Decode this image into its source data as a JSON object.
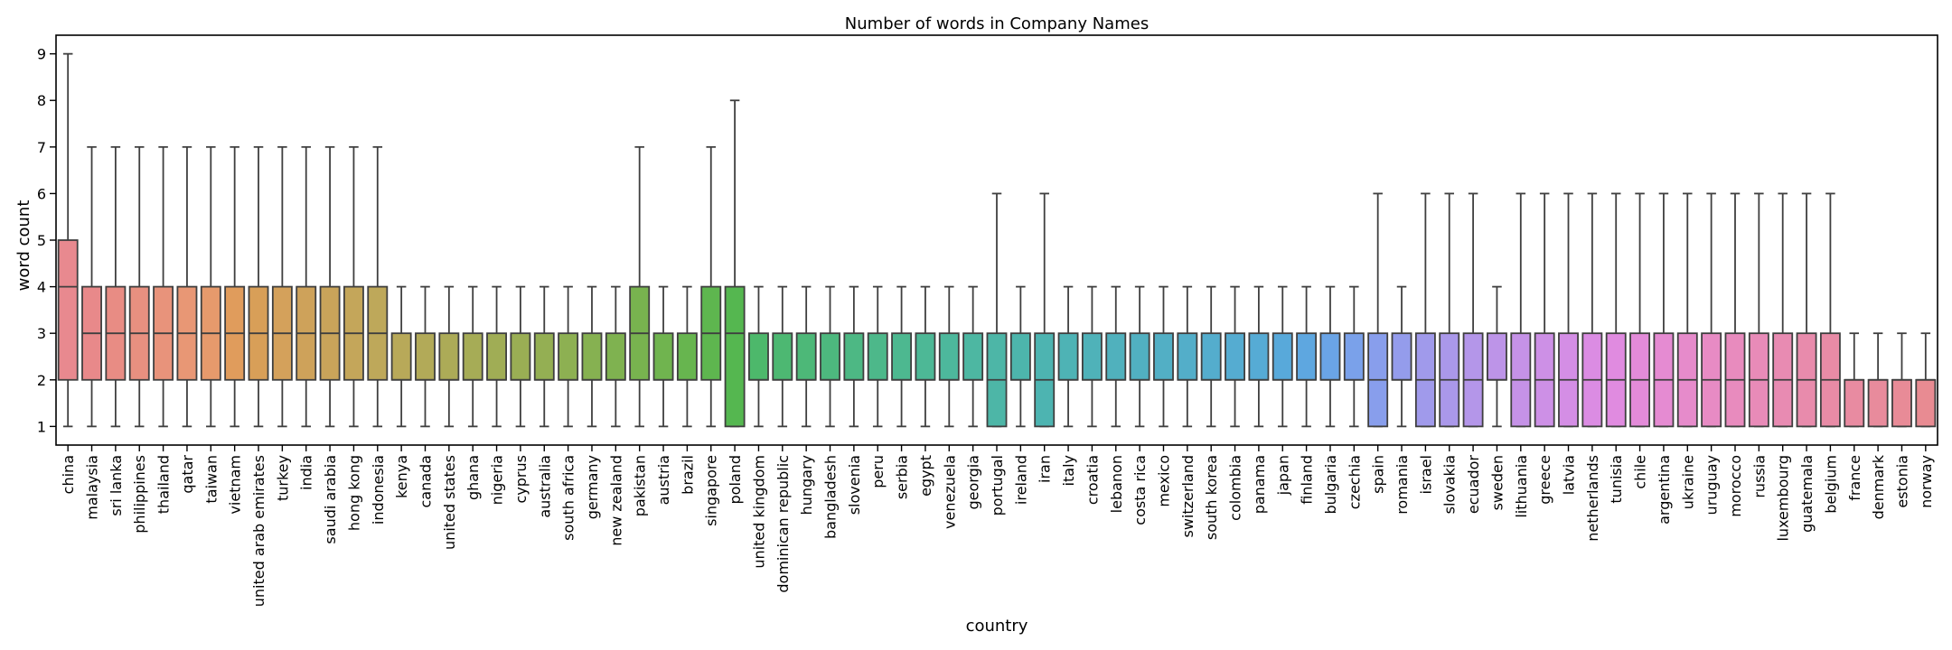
{
  "chart_data": {
    "type": "box",
    "title": "Number of words in Company Names",
    "xlabel": "country",
    "ylabel": "word count",
    "ylim": [
      0.6,
      9.4
    ],
    "yticks": [
      1,
      2,
      3,
      4,
      5,
      6,
      7,
      8,
      9
    ],
    "grid": false,
    "categories": [
      "china",
      "malaysia",
      "sri lanka",
      "philippines",
      "thailand",
      "qatar",
      "taiwan",
      "vietnam",
      "united arab emirates",
      "turkey",
      "india",
      "saudi arabia",
      "hong kong",
      "indonesia",
      "kenya",
      "canada",
      "united states",
      "ghana",
      "nigeria",
      "cyprus",
      "australia",
      "south africa",
      "germany",
      "new zealand",
      "pakistan",
      "austria",
      "brazil",
      "singapore",
      "poland",
      "united kingdom",
      "dominican republic",
      "hungary",
      "bangladesh",
      "slovenia",
      "peru",
      "serbia",
      "egypt",
      "venezuela",
      "georgia",
      "portugal",
      "ireland",
      "iran",
      "italy",
      "croatia",
      "lebanon",
      "costa rica",
      "mexico",
      "switzerland",
      "south korea",
      "colombia",
      "panama",
      "japan",
      "finland",
      "bulgaria",
      "czechia",
      "spain",
      "romania",
      "israel",
      "slovakia",
      "ecuador",
      "sweden",
      "lithuania",
      "greece",
      "latvia",
      "netherlands",
      "tunisia",
      "chile",
      "argentina",
      "ukraine",
      "uruguay",
      "morocco",
      "russia",
      "luxembourg",
      "guatemala",
      "belgium",
      "france",
      "denmark",
      "estonia",
      "norway"
    ],
    "boxes": [
      {
        "whislo": 1,
        "q1": 2,
        "med": 4,
        "q3": 5,
        "whishi": 9,
        "color": "#e8898f"
      },
      {
        "whislo": 1,
        "q1": 2,
        "med": 3,
        "q3": 4,
        "whishi": 7,
        "color": "#e8898a"
      },
      {
        "whislo": 1,
        "q1": 2,
        "med": 3,
        "q3": 4,
        "whishi": 7,
        "color": "#e88c84"
      },
      {
        "whislo": 1,
        "q1": 2,
        "med": 3,
        "q3": 4,
        "whishi": 7,
        "color": "#e89080"
      },
      {
        "whislo": 1,
        "q1": 2,
        "med": 3,
        "q3": 4,
        "whishi": 7,
        "color": "#e8937b"
      },
      {
        "whislo": 1,
        "q1": 2,
        "med": 3,
        "q3": 4,
        "whishi": 7,
        "color": "#e89775"
      },
      {
        "whislo": 1,
        "q1": 2,
        "med": 3,
        "q3": 4,
        "whishi": 7,
        "color": "#e69a6c"
      },
      {
        "whislo": 1,
        "q1": 2,
        "med": 3,
        "q3": 4,
        "whishi": 7,
        "color": "#e09c5c"
      },
      {
        "whislo": 1,
        "q1": 2,
        "med": 3,
        "q3": 4,
        "whishi": 7,
        "color": "#d89f58"
      },
      {
        "whislo": 1,
        "q1": 2,
        "med": 3,
        "q3": 4,
        "whishi": 7,
        "color": "#d4a15b"
      },
      {
        "whislo": 1,
        "q1": 2,
        "med": 3,
        "q3": 4,
        "whishi": 7,
        "color": "#cea25a"
      },
      {
        "whislo": 1,
        "q1": 2,
        "med": 3,
        "q3": 4,
        "whishi": 7,
        "color": "#c9a45a"
      },
      {
        "whislo": 1,
        "q1": 2,
        "med": 3,
        "q3": 4,
        "whishi": 7,
        "color": "#c4a65a"
      },
      {
        "whislo": 1,
        "q1": 2,
        "med": 3,
        "q3": 4,
        "whishi": 7,
        "color": "#bea85a"
      },
      {
        "whislo": 1,
        "q1": 2,
        "med": 2,
        "q3": 3,
        "whishi": 4,
        "color": "#b8a959"
      },
      {
        "whislo": 1,
        "q1": 2,
        "med": 2,
        "q3": 3,
        "whishi": 4,
        "color": "#b2aa58"
      },
      {
        "whislo": 1,
        "q1": 2,
        "med": 2,
        "q3": 3,
        "whishi": 4,
        "color": "#acab57"
      },
      {
        "whislo": 1,
        "q1": 2,
        "med": 2,
        "q3": 3,
        "whishi": 4,
        "color": "#a6ac56"
      },
      {
        "whislo": 1,
        "q1": 2,
        "med": 2,
        "q3": 3,
        "whishi": 4,
        "color": "#a0ad55"
      },
      {
        "whislo": 1,
        "q1": 2,
        "med": 2,
        "q3": 3,
        "whishi": 4,
        "color": "#9aae54"
      },
      {
        "whislo": 1,
        "q1": 2,
        "med": 2,
        "q3": 3,
        "whishi": 4,
        "color": "#94af53"
      },
      {
        "whislo": 1,
        "q1": 2,
        "med": 2,
        "q3": 3,
        "whishi": 4,
        "color": "#8db052"
      },
      {
        "whislo": 1,
        "q1": 2,
        "med": 2,
        "q3": 3,
        "whishi": 4,
        "color": "#86b151"
      },
      {
        "whislo": 1,
        "q1": 2,
        "med": 2,
        "q3": 3,
        "whishi": 4,
        "color": "#7fb250"
      },
      {
        "whislo": 1,
        "q1": 2,
        "med": 3,
        "q3": 4,
        "whishi": 7,
        "color": "#78b34f"
      },
      {
        "whislo": 1,
        "q1": 2,
        "med": 2,
        "q3": 3,
        "whishi": 4,
        "color": "#70b44f"
      },
      {
        "whislo": 1,
        "q1": 2,
        "med": 2,
        "q3": 3,
        "whishi": 4,
        "color": "#67b54f"
      },
      {
        "whislo": 1,
        "q1": 2,
        "med": 3,
        "q3": 4,
        "whishi": 7,
        "color": "#5eb64f"
      },
      {
        "whislo": 1,
        "q1": 1,
        "med": 3,
        "q3": 4,
        "whishi": 8,
        "color": "#55b750"
      },
      {
        "whislo": 1,
        "q1": 2,
        "med": 2,
        "q3": 3,
        "whishi": 4,
        "color": "#4db86b"
      },
      {
        "whislo": 1,
        "q1": 2,
        "med": 2,
        "q3": 3,
        "whishi": 4,
        "color": "#4db872"
      },
      {
        "whislo": 1,
        "q1": 2,
        "med": 2,
        "q3": 3,
        "whishi": 4,
        "color": "#4db878"
      },
      {
        "whislo": 1,
        "q1": 2,
        "med": 2,
        "q3": 3,
        "whishi": 4,
        "color": "#4db87e"
      },
      {
        "whislo": 1,
        "q1": 2,
        "med": 2,
        "q3": 3,
        "whishi": 4,
        "color": "#4db884"
      },
      {
        "whislo": 1,
        "q1": 2,
        "med": 2,
        "q3": 3,
        "whishi": 4,
        "color": "#4db88a"
      },
      {
        "whislo": 1,
        "q1": 2,
        "med": 2,
        "q3": 3,
        "whishi": 4,
        "color": "#4db890"
      },
      {
        "whislo": 1,
        "q1": 2,
        "med": 2,
        "q3": 3,
        "whishi": 4,
        "color": "#4db896"
      },
      {
        "whislo": 1,
        "q1": 2,
        "med": 2,
        "q3": 3,
        "whishi": 4,
        "color": "#4db89c"
      },
      {
        "whislo": 1,
        "q1": 2,
        "med": 2,
        "q3": 3,
        "whishi": 4,
        "color": "#4db7a2"
      },
      {
        "whislo": 1,
        "q1": 1,
        "med": 2,
        "q3": 3,
        "whishi": 6,
        "color": "#4db6a7"
      },
      {
        "whislo": 1,
        "q1": 2,
        "med": 2,
        "q3": 3,
        "whishi": 4,
        "color": "#4db5ac"
      },
      {
        "whislo": 1,
        "q1": 1,
        "med": 2,
        "q3": 3,
        "whishi": 6,
        "color": "#4db4b1"
      },
      {
        "whislo": 1,
        "q1": 2,
        "med": 2,
        "q3": 3,
        "whishi": 4,
        "color": "#4eb3b5"
      },
      {
        "whislo": 1,
        "q1": 2,
        "med": 2,
        "q3": 3,
        "whishi": 4,
        "color": "#4fb2b9"
      },
      {
        "whislo": 1,
        "q1": 2,
        "med": 2,
        "q3": 3,
        "whishi": 4,
        "color": "#50b1bd"
      },
      {
        "whislo": 1,
        "q1": 2,
        "med": 2,
        "q3": 3,
        "whishi": 4,
        "color": "#51b0c1"
      },
      {
        "whislo": 1,
        "q1": 2,
        "med": 2,
        "q3": 3,
        "whishi": 4,
        "color": "#52afc5"
      },
      {
        "whislo": 1,
        "q1": 2,
        "med": 2,
        "q3": 3,
        "whishi": 4,
        "color": "#53aec9"
      },
      {
        "whislo": 1,
        "q1": 2,
        "med": 2,
        "q3": 3,
        "whishi": 4,
        "color": "#54adcd"
      },
      {
        "whislo": 1,
        "q1": 2,
        "med": 2,
        "q3": 3,
        "whishi": 4,
        "color": "#55acd1"
      },
      {
        "whislo": 1,
        "q1": 2,
        "med": 2,
        "q3": 3,
        "whishi": 4,
        "color": "#56abd5"
      },
      {
        "whislo": 1,
        "q1": 2,
        "med": 2,
        "q3": 3,
        "whishi": 4,
        "color": "#58a9da"
      },
      {
        "whislo": 1,
        "q1": 2,
        "med": 2,
        "q3": 3,
        "whishi": 4,
        "color": "#5ea7e0"
      },
      {
        "whislo": 1,
        "q1": 2,
        "med": 2,
        "q3": 3,
        "whishi": 4,
        "color": "#6aa4e6"
      },
      {
        "whislo": 1,
        "q1": 2,
        "med": 2,
        "q3": 3,
        "whishi": 4,
        "color": "#7aa1ea"
      },
      {
        "whislo": 1,
        "q1": 1,
        "med": 2,
        "q3": 3,
        "whishi": 6,
        "color": "#889eec"
      },
      {
        "whislo": 1,
        "q1": 2,
        "med": 2,
        "q3": 3,
        "whishi": 4,
        "color": "#949cec"
      },
      {
        "whislo": 1,
        "q1": 1,
        "med": 2,
        "q3": 3,
        "whishi": 6,
        "color": "#a09aeb"
      },
      {
        "whislo": 1,
        "q1": 1,
        "med": 2,
        "q3": 3,
        "whishi": 6,
        "color": "#aa98ea"
      },
      {
        "whislo": 1,
        "q1": 1,
        "med": 2,
        "q3": 3,
        "whishi": 6,
        "color": "#b496e9"
      },
      {
        "whislo": 1,
        "q1": 2,
        "med": 2,
        "q3": 3,
        "whishi": 4,
        "color": "#bd94e8"
      },
      {
        "whislo": 1,
        "q1": 1,
        "med": 2,
        "q3": 3,
        "whishi": 6,
        "color": "#c592e7"
      },
      {
        "whislo": 1,
        "q1": 1,
        "med": 2,
        "q3": 3,
        "whishi": 6,
        "color": "#cd90e6"
      },
      {
        "whislo": 1,
        "q1": 1,
        "med": 2,
        "q3": 3,
        "whishi": 6,
        "color": "#d48ee5"
      },
      {
        "whislo": 1,
        "q1": 1,
        "med": 2,
        "q3": 3,
        "whishi": 6,
        "color": "#db8ce3"
      },
      {
        "whislo": 1,
        "q1": 1,
        "med": 2,
        "q3": 3,
        "whishi": 6,
        "color": "#e08be0"
      },
      {
        "whislo": 1,
        "q1": 1,
        "med": 2,
        "q3": 3,
        "whishi": 6,
        "color": "#e38bd9"
      },
      {
        "whislo": 1,
        "q1": 1,
        "med": 2,
        "q3": 3,
        "whishi": 6,
        "color": "#e58bd2"
      },
      {
        "whislo": 1,
        "q1": 1,
        "med": 2,
        "q3": 3,
        "whishi": 6,
        "color": "#e68bcb"
      },
      {
        "whislo": 1,
        "q1": 1,
        "med": 2,
        "q3": 3,
        "whishi": 6,
        "color": "#e78bc4"
      },
      {
        "whislo": 1,
        "q1": 1,
        "med": 2,
        "q3": 3,
        "whishi": 6,
        "color": "#e88bbe"
      },
      {
        "whislo": 1,
        "q1": 1,
        "med": 2,
        "q3": 3,
        "whishi": 6,
        "color": "#e88bb8"
      },
      {
        "whislo": 1,
        "q1": 1,
        "med": 2,
        "q3": 3,
        "whishi": 6,
        "color": "#e88bb2"
      },
      {
        "whislo": 1,
        "q1": 1,
        "med": 2,
        "q3": 3,
        "whishi": 6,
        "color": "#e88bac"
      },
      {
        "whislo": 1,
        "q1": 1,
        "med": 2,
        "q3": 3,
        "whishi": 6,
        "color": "#e88ba6"
      },
      {
        "whislo": 1,
        "q1": 1,
        "med": 2,
        "q3": 2,
        "whishi": 3,
        "color": "#e88ba1"
      },
      {
        "whislo": 1,
        "q1": 1,
        "med": 2,
        "q3": 2,
        "whishi": 3,
        "color": "#e88b9c"
      },
      {
        "whislo": 1,
        "q1": 1,
        "med": 2,
        "q3": 2,
        "whishi": 3,
        "color": "#e88b97"
      },
      {
        "whislo": 1,
        "q1": 1,
        "med": 2,
        "q3": 2,
        "whishi": 3,
        "color": "#e88b92"
      }
    ]
  }
}
